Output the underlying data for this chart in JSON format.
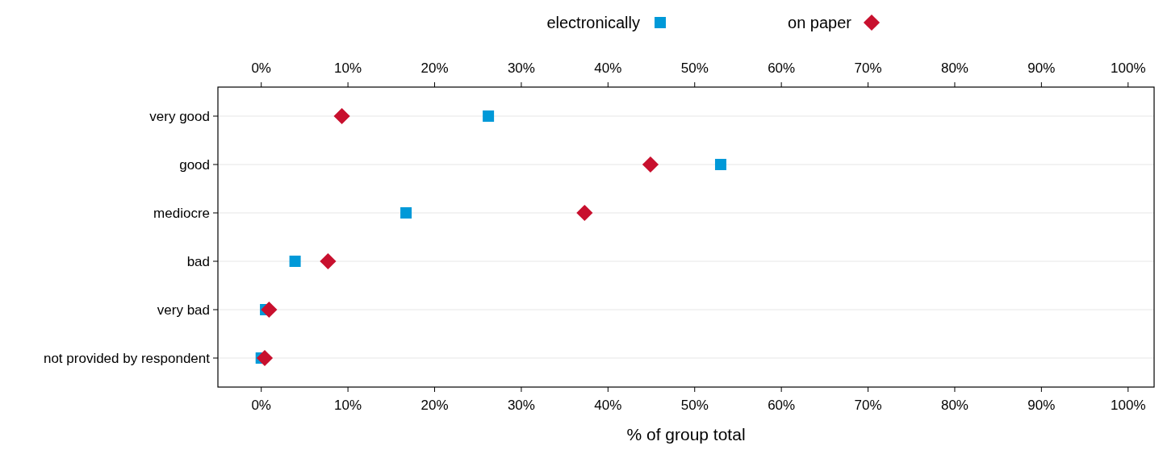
{
  "chart_data": {
    "type": "scatter",
    "xlabel": "% of group total",
    "orientation": "horizontal",
    "categories": [
      "very good",
      "good",
      "mediocre",
      "bad",
      "very bad",
      "not provided by respondent"
    ],
    "series": [
      {
        "name": "electronically",
        "color": "#0099d8",
        "marker": "square",
        "values": [
          26.2,
          53.0,
          16.7,
          3.9,
          0.5,
          0.0
        ]
      },
      {
        "name": "on paper",
        "color": "#c8102e",
        "marker": "diamond",
        "values": [
          9.3,
          44.9,
          37.3,
          7.7,
          0.9,
          0.4
        ]
      }
    ],
    "xlim": [
      -5,
      103
    ],
    "xticks": [
      {
        "value": 0,
        "label": "0%"
      },
      {
        "value": 10,
        "label": "10%"
      },
      {
        "value": 20,
        "label": "20%"
      },
      {
        "value": 30,
        "label": "30%"
      },
      {
        "value": 40,
        "label": "40%"
      },
      {
        "value": 50,
        "label": "50%"
      },
      {
        "value": 60,
        "label": "60%"
      },
      {
        "value": 70,
        "label": "70%"
      },
      {
        "value": 80,
        "label": "80%"
      },
      {
        "value": 90,
        "label": "90%"
      },
      {
        "value": 100,
        "label": "100%"
      }
    ],
    "x2lim": [
      -5,
      103
    ],
    "x2ticks": [
      {
        "value": 0,
        "label": "0%"
      },
      {
        "value": 10,
        "label": "10%"
      },
      {
        "value": 20,
        "label": "20%"
      },
      {
        "value": 30,
        "label": "30%"
      },
      {
        "value": 40,
        "label": "40%"
      },
      {
        "value": 50,
        "label": "50%"
      },
      {
        "value": 60,
        "label": "60%"
      },
      {
        "value": 70,
        "label": "70%"
      },
      {
        "value": 80,
        "label": "80%"
      },
      {
        "value": 90,
        "label": "90%"
      },
      {
        "value": 100,
        "label": "100%"
      }
    ],
    "grid": "y",
    "legend": "top"
  }
}
